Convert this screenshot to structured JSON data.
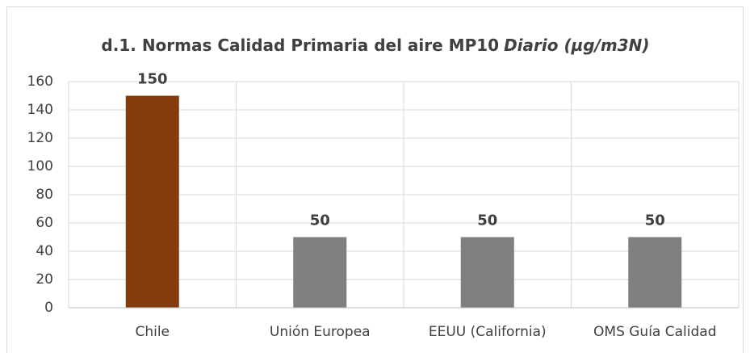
{
  "chart_data": {
    "type": "bar",
    "title": [
      "d.1. Normas Calidad Primaria del aire MP10",
      "Diario (µg/m3N)"
    ],
    "categories": [
      "Chile",
      "Unión Europea",
      "EEUU (California)",
      "OMS Guía Calidad"
    ],
    "values": [
      150,
      50,
      50,
      50
    ],
    "colors": [
      "#843c0c",
      "#7f7f7f",
      "#7f7f7f",
      "#7f7f7f"
    ],
    "ylim": [
      0,
      160
    ],
    "yticks": [
      0,
      20,
      40,
      60,
      80,
      100,
      120,
      140,
      160
    ],
    "grid": true
  }
}
